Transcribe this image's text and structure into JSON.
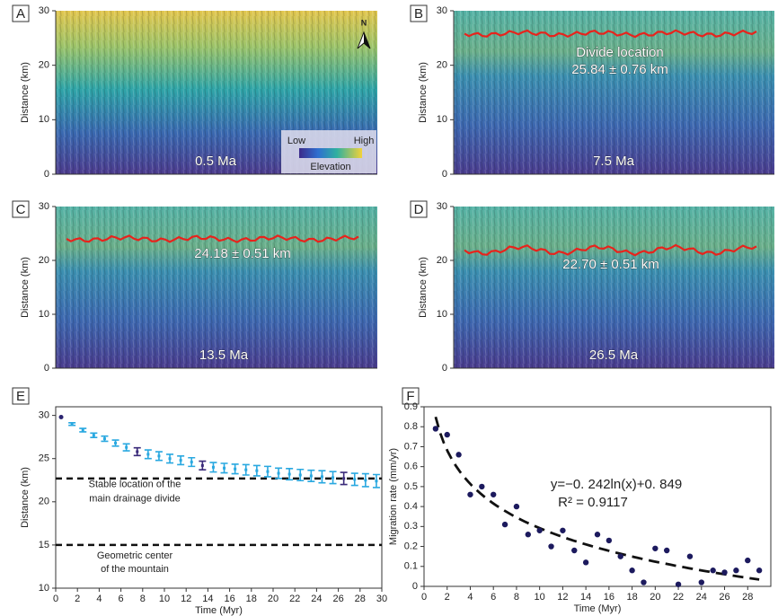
{
  "chart_data": [
    {
      "type": "raster",
      "panel": "A",
      "y_label": "Distance (km)",
      "ylim": [
        0,
        30
      ],
      "yticks": [
        0,
        10,
        20,
        30
      ],
      "time_label": "0.5 Ma",
      "annotations": [],
      "legend": {
        "low": "Low",
        "high": "High",
        "title": "Elevation"
      },
      "north": "N"
    },
    {
      "type": "raster",
      "panel": "B",
      "y_label": "Distance (km)",
      "ylim": [
        0,
        30
      ],
      "yticks": [
        0,
        10,
        20,
        30
      ],
      "time_label": "7.5 Ma",
      "annotations": [
        "Divide location",
        "25.84 ± 0.76 km"
      ]
    },
    {
      "type": "raster",
      "panel": "C",
      "y_label": "Distance (km)",
      "ylim": [
        0,
        30
      ],
      "yticks": [
        0,
        10,
        20,
        30
      ],
      "time_label": "13.5 Ma",
      "annotations": [
        "24.18 ± 0.51 km"
      ]
    },
    {
      "type": "raster",
      "panel": "D",
      "y_label": "Distance (km)",
      "ylim": [
        0,
        30
      ],
      "yticks": [
        0,
        10,
        20,
        30
      ],
      "time_label": "26.5 Ma",
      "annotations": [
        "22.70 ± 0.51 km"
      ]
    },
    {
      "type": "errorbar",
      "panel": "E",
      "x_label": "Time (Myr)",
      "y_label": "Distance (km)",
      "xlim": [
        0,
        30
      ],
      "xticks": [
        0,
        2,
        4,
        6,
        8,
        10,
        12,
        14,
        16,
        18,
        20,
        22,
        24,
        26,
        28,
        30
      ],
      "ylim": [
        10,
        31
      ],
      "yticks": [
        10,
        15,
        20,
        25,
        30
      ],
      "x": [
        0.5,
        1.5,
        2.5,
        3.5,
        4.5,
        5.5,
        6.5,
        7.5,
        8.5,
        9.5,
        10.5,
        11.5,
        12.5,
        13.5,
        14.5,
        15.5,
        16.5,
        17.5,
        18.5,
        19.5,
        20.5,
        21.5,
        22.5,
        23.5,
        24.5,
        25.5,
        26.5,
        27.5,
        28.5,
        29.5
      ],
      "values": [
        29.8,
        29.0,
        28.3,
        27.7,
        27.3,
        26.8,
        26.3,
        25.8,
        25.5,
        25.3,
        25.0,
        24.8,
        24.6,
        24.2,
        24.0,
        23.9,
        23.8,
        23.7,
        23.6,
        23.5,
        23.3,
        23.2,
        23.1,
        23.0,
        22.9,
        22.8,
        22.7,
        22.6,
        22.5,
        22.4
      ],
      "errors": [
        null,
        0.15,
        0.2,
        0.25,
        0.3,
        0.35,
        0.4,
        0.45,
        0.5,
        0.5,
        0.5,
        0.5,
        0.5,
        0.5,
        0.55,
        0.55,
        0.55,
        0.6,
        0.6,
        0.6,
        0.6,
        0.65,
        0.65,
        0.65,
        0.7,
        0.7,
        0.7,
        0.7,
        0.75,
        0.75
      ],
      "colors": [
        "#2b2470",
        "#29a8e0",
        "#29a8e0",
        "#29a8e0",
        "#29a8e0",
        "#29a8e0",
        "#29a8e0",
        "#3a2a7a",
        "#29a8e0",
        "#29a8e0",
        "#29a8e0",
        "#29a8e0",
        "#29a8e0",
        "#3a2a7a",
        "#29a8e0",
        "#29a8e0",
        "#29a8e0",
        "#29a8e0",
        "#29a8e0",
        "#29a8e0",
        "#29a8e0",
        "#29a8e0",
        "#29a8e0",
        "#29a8e0",
        "#29a8e0",
        "#29a8e0",
        "#3a2a7a",
        "#29a8e0",
        "#29a8e0",
        "#29a8e0"
      ],
      "hlines": [
        {
          "value": 22.7,
          "label": [
            "Stable location of the",
            "main drainage divide"
          ]
        },
        {
          "value": 15,
          "label": [
            "Geometric center",
            "of the mountain"
          ]
        }
      ]
    },
    {
      "type": "scatter",
      "panel": "F",
      "x_label": "Time (Myr)",
      "y_label": "Migration rate (mm/yr)",
      "xlim": [
        0,
        30
      ],
      "xticks": [
        0,
        2,
        4,
        6,
        8,
        10,
        12,
        14,
        16,
        18,
        20,
        22,
        24,
        26,
        28
      ],
      "ylim": [
        0,
        0.9
      ],
      "yticks": [
        0,
        0.1,
        0.2,
        0.3,
        0.4,
        0.5,
        0.6,
        0.7,
        0.8,
        0.9
      ],
      "color": "#1c1a5e",
      "x": [
        1,
        2,
        3,
        4,
        5,
        6,
        7,
        8,
        9,
        10,
        11,
        12,
        13,
        14,
        15,
        16,
        17,
        18,
        19,
        20,
        21,
        22,
        23,
        24,
        25,
        26,
        27,
        28,
        29
      ],
      "values": [
        0.79,
        0.76,
        0.66,
        0.46,
        0.5,
        0.46,
        0.31,
        0.4,
        0.26,
        0.28,
        0.2,
        0.28,
        0.18,
        0.12,
        0.26,
        0.23,
        0.15,
        0.08,
        0.02,
        0.19,
        0.18,
        0.01,
        0.15,
        0.02,
        0.08,
        0.07,
        0.08,
        0.13,
        0.08
      ],
      "fit": {
        "a": -0.242,
        "b": 0.849,
        "label": "y=−0. 242ln(x)+0. 849",
        "r2_label": "R² = 0.9117"
      }
    }
  ]
}
